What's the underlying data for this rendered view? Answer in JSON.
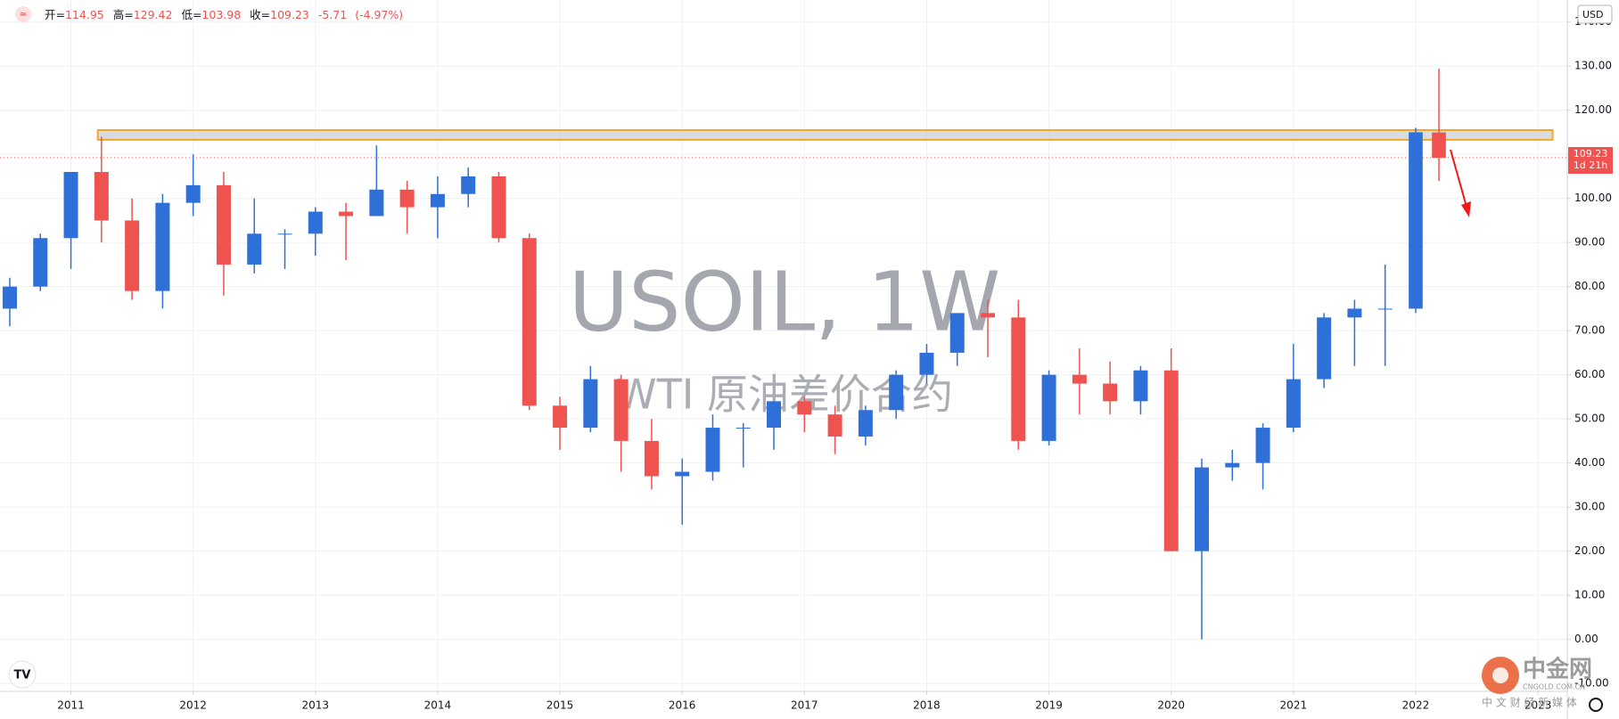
{
  "chart_data": {
    "type": "candlestick",
    "title": "USOIL, 1W",
    "subtitle": "WTI 原油差价合约",
    "header": {
      "open_label": "开=",
      "high_label": "高=",
      "low_label": "低=",
      "close_label": "收=",
      "change": "-5.71",
      "change_pct": "(-4.97%)"
    },
    "currency": "USD",
    "countdown": "1d 21h",
    "x": [
      2010.5,
      2010.75,
      2011.0,
      2011.25,
      2011.5,
      2011.75,
      2012.0,
      2012.25,
      2012.5,
      2012.75,
      2013.0,
      2013.25,
      2013.5,
      2013.75,
      2014.0,
      2014.25,
      2014.5,
      2014.75,
      2015.0,
      2015.25,
      2015.5,
      2015.75,
      2016.0,
      2016.25,
      2016.5,
      2016.75,
      2017.0,
      2017.25,
      2017.5,
      2017.75,
      2018.0,
      2018.25,
      2018.5,
      2018.75,
      2019.0,
      2019.25,
      2019.5,
      2019.75,
      2020.0,
      2020.25,
      2020.5,
      2020.75,
      2021.0,
      2021.25,
      2021.5,
      2021.75,
      2022.0,
      2022.19
    ],
    "open": [
      75,
      80,
      91,
      106,
      95,
      79,
      99,
      103,
      85,
      92,
      92,
      97,
      96,
      102,
      98,
      101,
      105,
      91,
      53,
      48,
      59,
      45,
      37,
      38,
      48,
      48,
      54,
      51,
      46,
      52,
      60,
      65,
      74,
      73,
      45,
      60,
      58,
      54,
      61,
      20,
      39,
      40,
      48,
      59,
      73,
      75,
      75,
      114.95
    ],
    "high": [
      82,
      92,
      106,
      114,
      100,
      101,
      110,
      106,
      100,
      93,
      98,
      99,
      112,
      104,
      105,
      107,
      106,
      92,
      55,
      62,
      60,
      50,
      41,
      51,
      49,
      54,
      55,
      53,
      53,
      61,
      67,
      74,
      77,
      77,
      61,
      66,
      63,
      62,
      66,
      41,
      43,
      49,
      67,
      74,
      77,
      85,
      116,
      129.42
    ],
    "low": [
      71,
      79,
      84,
      90,
      77,
      75,
      96,
      78,
      83,
      84,
      87,
      86,
      96,
      92,
      91,
      98,
      90,
      52,
      43,
      47,
      38,
      34,
      26,
      36,
      39,
      43,
      47,
      42,
      44,
      50,
      58,
      62,
      64,
      43,
      44,
      51,
      51,
      51,
      20,
      0,
      36,
      34,
      47,
      57,
      62,
      62,
      74,
      103.98
    ],
    "close": [
      80,
      91,
      106,
      95,
      79,
      99,
      103,
      85,
      92,
      92,
      97,
      96,
      102,
      98,
      101,
      105,
      91,
      53,
      48,
      59,
      45,
      37,
      38,
      48,
      48,
      54,
      51,
      46,
      52,
      60,
      65,
      74,
      73,
      45,
      60,
      58,
      54,
      61,
      20,
      39,
      40,
      48,
      59,
      73,
      75,
      75,
      115,
      109.23
    ],
    "up_color": "#2f6fd8",
    "down_color": "#ef5350",
    "zone": {
      "x_range": [
        2011.22,
        2023.12
      ],
      "y_range": [
        113.3,
        115.5
      ]
    },
    "xlim": [
      2010.42,
      2023.24
    ],
    "xticks": [
      2011,
      2012,
      2013,
      2014,
      2015,
      2016,
      2017,
      2018,
      2019,
      2020,
      2021,
      2022,
      2023
    ],
    "ylim": [
      -11.8,
      145
    ],
    "yticks": [
      {
        "value": -10,
        "label": "-10.00"
      },
      {
        "value": 0,
        "label": "0.00"
      },
      {
        "value": 10,
        "label": "10.00"
      },
      {
        "value": 20,
        "label": "20.00"
      },
      {
        "value": 30,
        "label": "30.00"
      },
      {
        "value": 40,
        "label": "40.00"
      },
      {
        "value": 50,
        "label": "50.00"
      },
      {
        "value": 60,
        "label": "60.00"
      },
      {
        "value": 70,
        "label": "70.00"
      },
      {
        "value": 80,
        "label": "80.00"
      },
      {
        "value": 90,
        "label": "90.00"
      },
      {
        "value": 100,
        "label": "100.00"
      },
      {
        "value": 110,
        "label": "110.00"
      },
      {
        "value": 120,
        "label": "120.00"
      },
      {
        "value": 130,
        "label": "130.00"
      },
      {
        "value": 140,
        "label": "140.00"
      }
    ],
    "grid": true
  },
  "watermark": {
    "brand": "中金网",
    "domain": "CNGOLD.COM.CN",
    "slogan": "中 文 财 经 新 媒 体"
  }
}
